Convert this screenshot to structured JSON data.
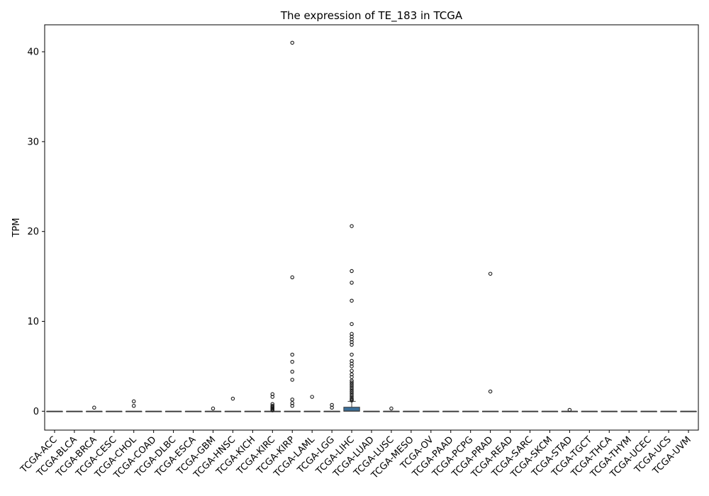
{
  "chart_data": {
    "type": "box",
    "title": "The expression of TE_183 in TCGA",
    "xlabel": "",
    "ylabel": "TPM",
    "ylim": [
      -2.1,
      43
    ],
    "yticks": [
      0,
      10,
      20,
      30,
      40
    ],
    "grid": false,
    "box_color": "#3a6f99",
    "categories": [
      "TCGA-ACC",
      "TCGA-BLCA",
      "TCGA-BRCA",
      "TCGA-CESC",
      "TCGA-CHOL",
      "TCGA-COAD",
      "TCGA-DLBC",
      "TCGA-ESCA",
      "TCGA-GBM",
      "TCGA-HNSC",
      "TCGA-KICH",
      "TCGA-KIRC",
      "TCGA-KIRP",
      "TCGA-LAML",
      "TCGA-LGG",
      "TCGA-LIHC",
      "TCGA-LUAD",
      "TCGA-LUSC",
      "TCGA-MESO",
      "TCGA-OV",
      "TCGA-PAAD",
      "TCGA-PCPG",
      "TCGA-PRAD",
      "TCGA-READ",
      "TCGA-SARC",
      "TCGA-SKCM",
      "TCGA-STAD",
      "TCGA-TGCT",
      "TCGA-THCA",
      "TCGA-THYM",
      "TCGA-UCEC",
      "TCGA-UCS",
      "TCGA-UVM"
    ],
    "boxes": [
      {
        "q1": 0,
        "median": 0,
        "q3": 0,
        "whisker_low": 0,
        "whisker_high": 0,
        "outliers": []
      },
      {
        "q1": 0,
        "median": 0,
        "q3": 0,
        "whisker_low": 0,
        "whisker_high": 0,
        "outliers": []
      },
      {
        "q1": 0,
        "median": 0,
        "q3": 0,
        "whisker_low": 0,
        "whisker_high": 0,
        "outliers": [
          0.4
        ]
      },
      {
        "q1": 0,
        "median": 0,
        "q3": 0,
        "whisker_low": 0,
        "whisker_high": 0,
        "outliers": []
      },
      {
        "q1": 0,
        "median": 0,
        "q3": 0,
        "whisker_low": 0,
        "whisker_high": 0,
        "outliers": [
          1.1,
          0.6
        ]
      },
      {
        "q1": 0,
        "median": 0,
        "q3": 0,
        "whisker_low": 0,
        "whisker_high": 0,
        "outliers": []
      },
      {
        "q1": 0,
        "median": 0,
        "q3": 0,
        "whisker_low": 0,
        "whisker_high": 0,
        "outliers": []
      },
      {
        "q1": 0,
        "median": 0,
        "q3": 0,
        "whisker_low": 0,
        "whisker_high": 0,
        "outliers": []
      },
      {
        "q1": 0,
        "median": 0,
        "q3": 0,
        "whisker_low": 0,
        "whisker_high": 0,
        "outliers": [
          0.3
        ]
      },
      {
        "q1": 0,
        "median": 0,
        "q3": 0,
        "whisker_low": 0,
        "whisker_high": 0,
        "outliers": [
          1.4
        ]
      },
      {
        "q1": 0,
        "median": 0,
        "q3": 0,
        "whisker_low": 0,
        "whisker_high": 0,
        "outliers": []
      },
      {
        "q1": 0,
        "median": 0,
        "q3": 0,
        "whisker_low": 0,
        "whisker_high": 0,
        "outliers": [
          1.9,
          1.6,
          0.8,
          0.6,
          0.5,
          0.4,
          0.3,
          0.2,
          0.1
        ]
      },
      {
        "q1": 0,
        "median": 0,
        "q3": 0,
        "whisker_low": 0,
        "whisker_high": 0,
        "outliers": [
          41.0,
          14.9,
          6.3,
          5.5,
          4.4,
          3.5,
          1.3,
          0.9,
          0.6
        ]
      },
      {
        "q1": 0,
        "median": 0,
        "q3": 0,
        "whisker_low": 0,
        "whisker_high": 0,
        "outliers": [
          1.6
        ]
      },
      {
        "q1": 0,
        "median": 0,
        "q3": 0,
        "whisker_low": 0,
        "whisker_high": 0,
        "outliers": [
          0.7,
          0.4
        ]
      },
      {
        "q1": 0,
        "median": 0.02,
        "q3": 0.45,
        "whisker_low": 0,
        "whisker_high": 1.1,
        "outliers": [
          20.6,
          15.6,
          14.3,
          12.3,
          9.7,
          8.6,
          8.3,
          8.0,
          7.7,
          7.4,
          6.3,
          5.6,
          5.3,
          5.0,
          4.5,
          4.1,
          3.8,
          3.4,
          3.2,
          3.0,
          2.8,
          2.6,
          2.4,
          2.2,
          2.0,
          1.8,
          1.6,
          1.4,
          1.3,
          1.2
        ]
      },
      {
        "q1": 0,
        "median": 0,
        "q3": 0,
        "whisker_low": 0,
        "whisker_high": 0,
        "outliers": []
      },
      {
        "q1": 0,
        "median": 0,
        "q3": 0,
        "whisker_low": 0,
        "whisker_high": 0,
        "outliers": [
          0.3
        ]
      },
      {
        "q1": 0,
        "median": 0,
        "q3": 0,
        "whisker_low": 0,
        "whisker_high": 0,
        "outliers": []
      },
      {
        "q1": 0,
        "median": 0,
        "q3": 0,
        "whisker_low": 0,
        "whisker_high": 0,
        "outliers": []
      },
      {
        "q1": 0,
        "median": 0,
        "q3": 0,
        "whisker_low": 0,
        "whisker_high": 0,
        "outliers": []
      },
      {
        "q1": 0,
        "median": 0,
        "q3": 0,
        "whisker_low": 0,
        "whisker_high": 0,
        "outliers": []
      },
      {
        "q1": 0,
        "median": 0,
        "q3": 0,
        "whisker_low": 0,
        "whisker_high": 0,
        "outliers": [
          15.3,
          2.2
        ]
      },
      {
        "q1": 0,
        "median": 0,
        "q3": 0,
        "whisker_low": 0,
        "whisker_high": 0,
        "outliers": []
      },
      {
        "q1": 0,
        "median": 0,
        "q3": 0,
        "whisker_low": 0,
        "whisker_high": 0,
        "outliers": []
      },
      {
        "q1": 0,
        "median": 0,
        "q3": 0,
        "whisker_low": 0,
        "whisker_high": 0,
        "outliers": []
      },
      {
        "q1": 0,
        "median": 0,
        "q3": 0,
        "whisker_low": 0,
        "whisker_high": 0,
        "outliers": [
          0.15
        ]
      },
      {
        "q1": 0,
        "median": 0,
        "q3": 0,
        "whisker_low": 0,
        "whisker_high": 0,
        "outliers": []
      },
      {
        "q1": 0,
        "median": 0,
        "q3": 0,
        "whisker_low": 0,
        "whisker_high": 0,
        "outliers": []
      },
      {
        "q1": 0,
        "median": 0,
        "q3": 0,
        "whisker_low": 0,
        "whisker_high": 0,
        "outliers": []
      },
      {
        "q1": 0,
        "median": 0,
        "q3": 0,
        "whisker_low": 0,
        "whisker_high": 0,
        "outliers": []
      },
      {
        "q1": 0,
        "median": 0,
        "q3": 0,
        "whisker_low": 0,
        "whisker_high": 0,
        "outliers": []
      },
      {
        "q1": 0,
        "median": 0,
        "q3": 0,
        "whisker_low": 0,
        "whisker_high": 0,
        "outliers": []
      }
    ]
  }
}
